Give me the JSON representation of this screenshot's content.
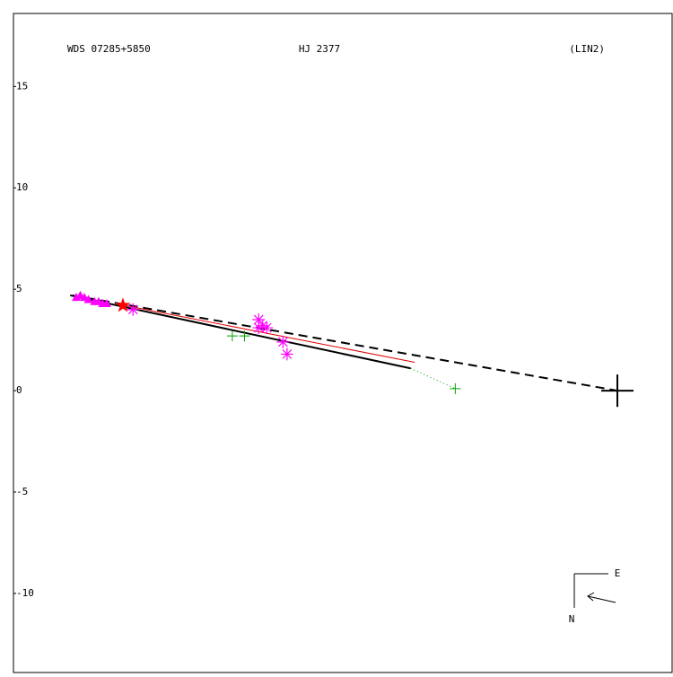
{
  "chart_data": {
    "type": "scatter",
    "wds_id": "WDS 07285+5850",
    "title": "HJ 2377",
    "reference": "(LIN2)",
    "xlim": [
      -29.8,
      2.7
    ],
    "ylim": [
      -13.9,
      18.6
    ],
    "yticks": [
      15,
      10,
      5,
      0,
      -5,
      -10
    ],
    "series": [
      {
        "kind": "line",
        "style": "dashed",
        "color": "#000000",
        "width": 2,
        "x": [
          -26.9,
          0
        ],
        "values": [
          4.7,
          0
        ]
      },
      {
        "kind": "line",
        "style": "solid",
        "color": "#000000",
        "width": 2,
        "x": [
          -27.0,
          -10.2
        ],
        "values": [
          4.7,
          1.1
        ]
      },
      {
        "kind": "line",
        "style": "solid",
        "color": "#e00000",
        "width": 1,
        "x": [
          -24.3,
          -10.0
        ],
        "values": [
          4.2,
          1.4
        ]
      },
      {
        "kind": "line",
        "style": "dotted",
        "color": "#00a000",
        "width": 1,
        "x": [
          -10.2,
          -8.0
        ],
        "values": [
          1.1,
          0.1
        ]
      },
      {
        "kind": "triangle",
        "color": "#ff00ff",
        "x": [
          -26.7,
          -26.5,
          -26.3,
          -26.1,
          -25.8,
          -25.6,
          -25.4,
          -25.2
        ],
        "values": [
          4.6,
          4.7,
          4.6,
          4.5,
          4.4,
          4.4,
          4.3,
          4.3
        ]
      },
      {
        "kind": "asterisk",
        "color": "#ff00ff",
        "x": [
          -23.9,
          -17.7,
          -17.5,
          -17.7,
          -17.3,
          -16.5,
          -16.3
        ],
        "values": [
          4.0,
          3.5,
          3.2,
          3.1,
          3.1,
          2.4,
          1.8
        ]
      },
      {
        "kind": "plus",
        "color": "#00a000",
        "x": [
          -19.0,
          -18.4,
          -8.0
        ],
        "values": [
          2.7,
          2.7,
          0.1
        ]
      },
      {
        "kind": "star",
        "color": "#ff0000",
        "x": [
          -24.4
        ],
        "values": [
          4.2
        ]
      },
      {
        "kind": "primary",
        "color": "#000000",
        "x": [
          0
        ],
        "values": [
          0
        ]
      }
    ]
  },
  "compass": {
    "east": "E",
    "north": "N"
  }
}
